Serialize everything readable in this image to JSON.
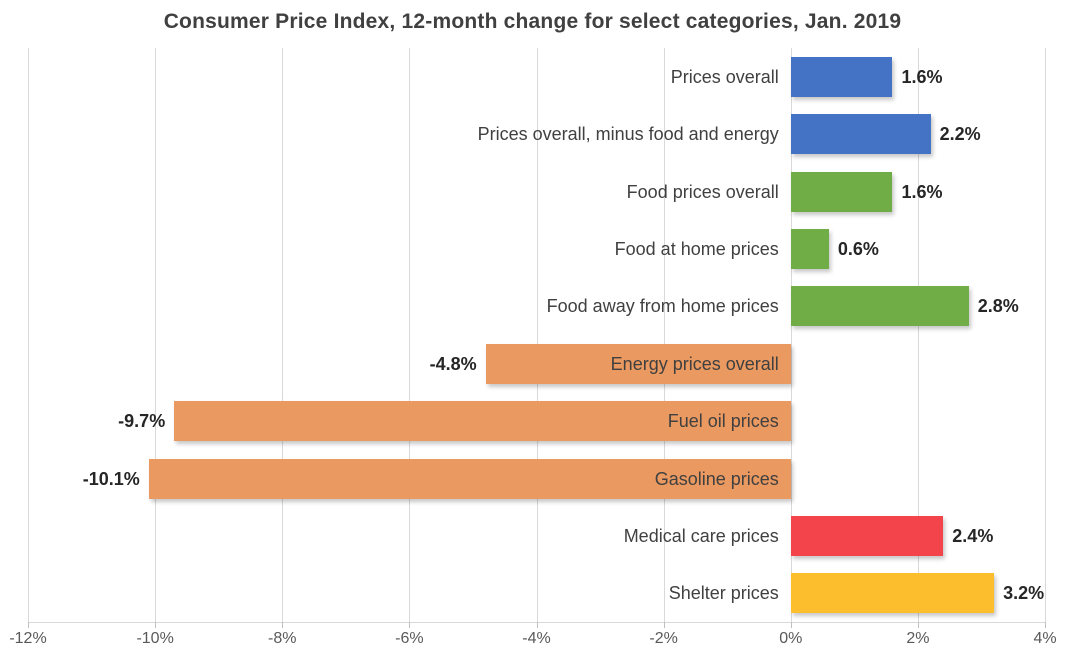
{
  "chart_data": {
    "type": "bar",
    "orientation": "horizontal",
    "title": "Consumer Price Index, 12-month change for select categories, Jan. 2019",
    "categories": [
      "Prices overall",
      "Prices overall, minus food and energy",
      "Food prices overall",
      "Food at home prices",
      "Food away from home prices",
      "Energy prices overall",
      "Fuel oil prices",
      "Gasoline prices",
      "Medical care prices",
      "Shelter prices"
    ],
    "values": [
      1.6,
      2.2,
      1.6,
      0.6,
      2.8,
      -4.8,
      -9.7,
      -10.1,
      2.4,
      3.2
    ],
    "value_labels": [
      "1.6%",
      "2.2%",
      "1.6%",
      "0.6%",
      "2.8%",
      "-4.8%",
      "-9.7%",
      "-10.1%",
      "2.4%",
      "3.2%"
    ],
    "bar_colors": [
      "#4472C4",
      "#4472C4",
      "#70AD47",
      "#70AD47",
      "#70AD47",
      "#EA9960",
      "#EA9960",
      "#EA9960",
      "#F2444A",
      "#FDBE2D"
    ],
    "xlabel": "",
    "ylabel": "",
    "xlim": [
      -12,
      4
    ],
    "ticks": [
      -12,
      -10,
      -8,
      -6,
      -4,
      -2,
      0,
      2,
      4
    ],
    "tick_labels": [
      "-12%",
      "-10%",
      "-8%",
      "-6%",
      "-4%",
      "-2%",
      "0%",
      "2%",
      "4%"
    ],
    "grid": true,
    "legend": false,
    "colors_meaning": {
      "#4472C4": "overall price indexes",
      "#70AD47": "food categories",
      "#EA9960": "energy categories",
      "#F2444A": "medical care",
      "#FDBE2D": "shelter"
    },
    "style": {
      "gridline_color": "#d9d9d9",
      "title_color": "#404040",
      "category_label_color": "#404040",
      "value_label_color": "#262626",
      "axis_label_color": "#595959"
    }
  }
}
